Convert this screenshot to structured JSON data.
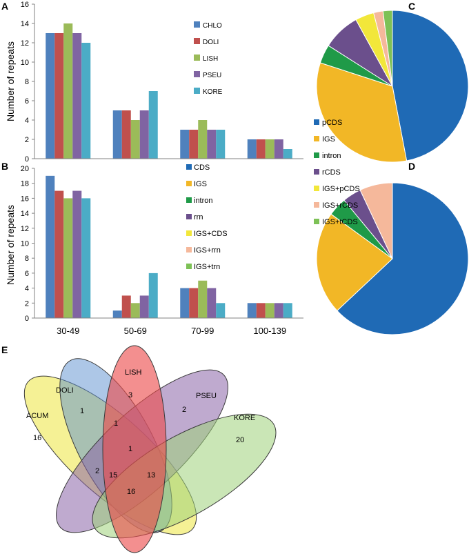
{
  "panel_labels": {
    "A": "A",
    "B": "B",
    "C": "C",
    "D": "D",
    "E": "E"
  },
  "colors": {
    "CHLO": "#4f81bd",
    "DOLI": "#c0504d",
    "LISH": "#9bbb59",
    "PSEU": "#8064a2",
    "KORE": "#4bacc6",
    "pie": [
      "#1f6ab5",
      "#f2b726",
      "#1f9a48",
      "#6b4f8c",
      "#f2e73a",
      "#f5b89b",
      "#7dc156"
    ]
  },
  "chart_data": [
    {
      "id": "A",
      "type": "bar",
      "ylabel": "Number of repeats",
      "ylim": [
        0,
        16
      ],
      "yticks": [
        0,
        2,
        4,
        6,
        8,
        10,
        12,
        14,
        16
      ],
      "categories": [
        "30-49",
        "50-69",
        "70-99",
        "100-139"
      ],
      "series": [
        {
          "name": "CHLO",
          "color": "#4f81bd",
          "values": [
            13,
            5,
            3,
            2
          ]
        },
        {
          "name": "DOLI",
          "color": "#c0504d",
          "values": [
            13,
            5,
            3,
            2
          ]
        },
        {
          "name": "LISH",
          "color": "#9bbb59",
          "values": [
            14,
            4,
            4,
            2
          ]
        },
        {
          "name": "PSEU",
          "color": "#8064a2",
          "values": [
            13,
            5,
            3,
            2
          ]
        },
        {
          "name": "KORE",
          "color": "#4bacc6",
          "values": [
            12,
            7,
            3,
            1
          ]
        }
      ]
    },
    {
      "id": "B",
      "type": "bar",
      "ylabel": "Number of repeats",
      "ylim": [
        0,
        20
      ],
      "yticks": [
        0,
        2,
        4,
        6,
        8,
        10,
        12,
        14,
        16,
        18,
        20
      ],
      "categories": [
        "30-49",
        "50-69",
        "70-99",
        "100-139"
      ],
      "series": [
        {
          "name": "CHLO",
          "color": "#4f81bd",
          "values": [
            19,
            1,
            4,
            2
          ]
        },
        {
          "name": "DOLI",
          "color": "#c0504d",
          "values": [
            17,
            3,
            4,
            2
          ]
        },
        {
          "name": "LISH",
          "color": "#9bbb59",
          "values": [
            16,
            2,
            5,
            2
          ]
        },
        {
          "name": "PSEU",
          "color": "#8064a2",
          "values": [
            17,
            3,
            4,
            2
          ]
        },
        {
          "name": "KORE",
          "color": "#4bacc6",
          "values": [
            16,
            6,
            2,
            2
          ]
        }
      ]
    },
    {
      "id": "C",
      "type": "pie",
      "legend": [
        "pCDS",
        "IGS",
        "intron",
        "rCDS",
        "IGS+pCDS",
        "IGS+rCDS",
        "IGS+tCDS"
      ],
      "slices": [
        {
          "name": "pCDS",
          "value": 47,
          "color": "#1f6ab5"
        },
        {
          "name": "IGS",
          "value": 33,
          "color": "#f2b726"
        },
        {
          "name": "intron",
          "value": 4,
          "color": "#1f9a48"
        },
        {
          "name": "rCDS",
          "value": 8,
          "color": "#6b4f8c"
        },
        {
          "name": "IGS+pCDS",
          "value": 4,
          "color": "#f2e73a"
        },
        {
          "name": "IGS+rCDS",
          "value": 2,
          "color": "#f5b89b"
        },
        {
          "name": "IGS+tCDS",
          "value": 2,
          "color": "#7dc156"
        }
      ]
    },
    {
      "id": "D",
      "type": "pie",
      "legend": [
        "CDS",
        "IGS",
        "intron",
        "rrn",
        "IGS+CDS",
        "IGS+rrn",
        "IGS+trn"
      ],
      "slices": [
        {
          "name": "CDS",
          "value": 63,
          "color": "#1f6ab5"
        },
        {
          "name": "IGS",
          "value": 22,
          "color": "#f2b726"
        },
        {
          "name": "intron",
          "value": 4,
          "color": "#1f9a48"
        },
        {
          "name": "rrn",
          "value": 4,
          "color": "#6b4f8c"
        },
        {
          "name": "IGS+CDS",
          "value": 0,
          "color": "#f2e73a"
        },
        {
          "name": "IGS+rrn",
          "value": 7,
          "color": "#f5b89b"
        },
        {
          "name": "IGS+trn",
          "value": 0,
          "color": "#7dc156"
        }
      ]
    }
  ],
  "venn": {
    "sets": [
      "ACUM",
      "DOLI",
      "LISH",
      "PSEU",
      "KORE"
    ],
    "counts": [
      "16",
      "1",
      "3",
      "2",
      "20",
      "1",
      "1",
      "2",
      "15",
      "13",
      "16"
    ]
  }
}
